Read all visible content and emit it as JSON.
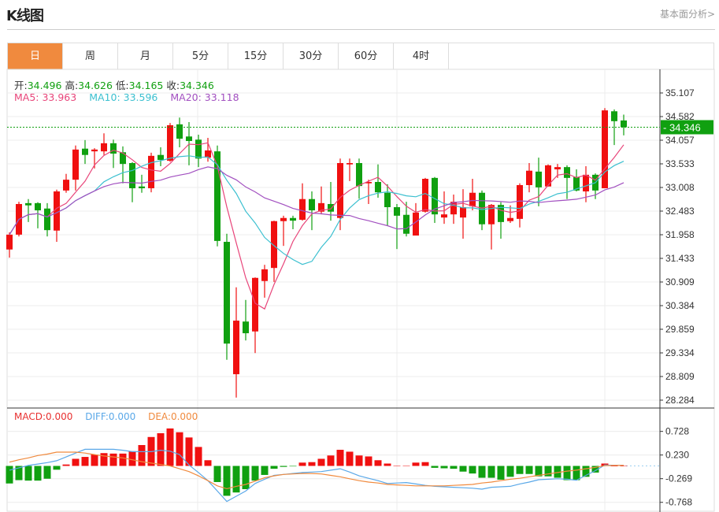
{
  "header": {
    "title": "K线图",
    "link": "基本面分析>"
  },
  "tabs": [
    {
      "label": "日",
      "active": true
    },
    {
      "label": "周"
    },
    {
      "label": "月"
    },
    {
      "label": "5分"
    },
    {
      "label": "15分"
    },
    {
      "label": "30分"
    },
    {
      "label": "60分"
    },
    {
      "label": "4时"
    }
  ],
  "info": {
    "open_label": "开:",
    "open": "34.496",
    "high_label": "高:",
    "high": "34.626",
    "low_label": "低:",
    "low": "34.165",
    "close_label": "收:",
    "close": "34.346",
    "ma5": "MA5: 33.963",
    "ma10": "MA10: 33.596",
    "ma20": "MA20: 33.118"
  },
  "macd_info": {
    "macd": "MACD:0.000",
    "diff": "DIFF:0.000",
    "dea": "DEA:0.000"
  },
  "colors": {
    "up": "#f01010",
    "down": "#10a010",
    "ma5": "#e8457a",
    "ma10": "#3cc0d0",
    "ma20": "#a250c0",
    "diff": "#5aa8e8",
    "dea": "#f08a3e",
    "accent": "#f08a3e"
  },
  "chart_data": [
    {
      "type": "candlestick",
      "name": "K线",
      "current_price": "34.346",
      "y_ticks": [
        "35.107",
        "34.582",
        "34.057",
        "33.533",
        "33.008",
        "32.483",
        "31.958",
        "31.433",
        "30.909",
        "30.384",
        "29.859",
        "29.334",
        "28.809",
        "28.284"
      ],
      "ylim": [
        28.284,
        35.107
      ],
      "grid": true,
      "ohlc": [
        [
          31.63,
          32.01,
          31.45,
          31.96
        ],
        [
          31.96,
          32.69,
          31.92,
          32.64
        ],
        [
          32.66,
          32.75,
          32.24,
          32.61
        ],
        [
          32.66,
          32.68,
          32.1,
          32.5
        ],
        [
          32.54,
          32.66,
          31.92,
          32.06
        ],
        [
          32.05,
          32.96,
          31.8,
          32.92
        ],
        [
          32.94,
          33.31,
          32.89,
          33.18
        ],
        [
          33.18,
          33.94,
          32.94,
          33.85
        ],
        [
          33.87,
          34.06,
          33.53,
          33.73
        ],
        [
          33.81,
          33.88,
          33.43,
          33.85
        ],
        [
          33.81,
          34.21,
          33.73,
          33.99
        ],
        [
          33.99,
          34.07,
          33.44,
          33.76
        ],
        [
          33.79,
          33.92,
          33.1,
          33.53
        ],
        [
          33.55,
          33.57,
          32.68,
          32.99
        ],
        [
          33.03,
          33.29,
          32.89,
          32.99
        ],
        [
          32.99,
          33.78,
          32.9,
          33.71
        ],
        [
          33.73,
          33.9,
          33.48,
          33.62
        ],
        [
          33.6,
          34.44,
          33.58,
          34.39
        ],
        [
          34.41,
          34.56,
          33.9,
          34.09
        ],
        [
          34.14,
          34.46,
          33.5,
          34.04
        ],
        [
          34.07,
          34.18,
          33.46,
          33.65
        ],
        [
          33.67,
          34.11,
          33.58,
          33.83
        ],
        [
          33.81,
          33.94,
          31.7,
          31.82
        ],
        [
          31.8,
          31.98,
          29.18,
          29.54
        ],
        [
          28.86,
          30.79,
          28.34,
          30.05
        ],
        [
          30.03,
          30.51,
          29.61,
          29.77
        ],
        [
          29.81,
          31.01,
          29.33,
          31.0
        ],
        [
          30.93,
          31.29,
          30.56,
          31.19
        ],
        [
          31.22,
          32.27,
          30.91,
          32.26
        ],
        [
          32.26,
          32.38,
          31.71,
          32.33
        ],
        [
          32.33,
          32.38,
          32.08,
          32.27
        ],
        [
          32.29,
          33.1,
          32.27,
          32.75
        ],
        [
          32.75,
          32.92,
          32.06,
          32.5
        ],
        [
          32.47,
          33.03,
          32.41,
          32.66
        ],
        [
          32.64,
          33.13,
          32.27,
          32.47
        ],
        [
          32.33,
          33.65,
          32.06,
          33.55
        ],
        [
          33.52,
          33.65,
          33.15,
          33.55
        ],
        [
          33.55,
          33.65,
          32.76,
          33.04
        ],
        [
          33.1,
          33.18,
          32.64,
          33.13
        ],
        [
          33.13,
          33.52,
          32.78,
          32.9
        ],
        [
          32.89,
          33.08,
          32.15,
          32.57
        ],
        [
          32.57,
          32.64,
          31.64,
          32.38
        ],
        [
          32.4,
          32.69,
          31.92,
          31.98
        ],
        [
          31.94,
          32.66,
          31.94,
          32.45
        ],
        [
          32.47,
          33.22,
          32.45,
          33.2
        ],
        [
          33.22,
          33.24,
          32.22,
          32.41
        ],
        [
          32.34,
          32.92,
          32.2,
          32.41
        ],
        [
          32.41,
          32.85,
          32.2,
          32.69
        ],
        [
          32.34,
          32.97,
          31.87,
          32.57
        ],
        [
          32.59,
          33.2,
          32.5,
          32.89
        ],
        [
          32.89,
          32.94,
          32.06,
          32.19
        ],
        [
          32.19,
          32.64,
          31.63,
          32.62
        ],
        [
          32.62,
          32.68,
          31.87,
          32.24
        ],
        [
          32.26,
          32.61,
          32.22,
          32.33
        ],
        [
          32.31,
          33.1,
          32.12,
          33.06
        ],
        [
          33.06,
          33.55,
          32.9,
          33.38
        ],
        [
          33.36,
          33.67,
          32.59,
          33.01
        ],
        [
          33.03,
          33.52,
          33.03,
          33.5
        ],
        [
          33.41,
          33.53,
          33.22,
          33.46
        ],
        [
          33.46,
          33.5,
          32.75,
          33.22
        ],
        [
          33.24,
          33.41,
          32.92,
          32.94
        ],
        [
          32.92,
          33.48,
          32.68,
          33.29
        ],
        [
          33.29,
          33.32,
          32.75,
          32.94
        ],
        [
          32.99,
          34.77,
          32.99,
          34.72
        ],
        [
          34.7,
          34.74,
          33.95,
          34.48
        ],
        [
          34.496,
          34.626,
          34.165,
          34.346
        ]
      ],
      "moving_averages": [
        5,
        10,
        20
      ]
    },
    {
      "type": "bar+line",
      "name": "MACD",
      "y_ticks": [
        "0.728",
        "0.230",
        "-0.269",
        "-0.768"
      ],
      "ylim": [
        -0.85,
        0.85
      ],
      "macd": [
        -0.37,
        -0.3,
        -0.31,
        -0.31,
        -0.27,
        -0.08,
        0.03,
        0.15,
        0.19,
        0.24,
        0.27,
        0.26,
        0.26,
        0.31,
        0.44,
        0.61,
        0.69,
        0.79,
        0.71,
        0.6,
        0.4,
        0.12,
        -0.34,
        -0.63,
        -0.56,
        -0.49,
        -0.31,
        -0.19,
        -0.06,
        -0.02,
        -0.01,
        0.07,
        0.08,
        0.15,
        0.22,
        0.34,
        0.3,
        0.22,
        0.2,
        0.12,
        0.05,
        0.005,
        0,
        0.07,
        0.08,
        -0.04,
        -0.05,
        -0.06,
        -0.12,
        -0.16,
        -0.25,
        -0.25,
        -0.29,
        -0.23,
        -0.17,
        -0.17,
        -0.22,
        -0.22,
        -0.25,
        -0.3,
        -0.3,
        -0.23,
        -0.14,
        0.05,
        0,
        0
      ],
      "diff": [
        -0.09,
        -0.04,
        0.01,
        0.04,
        0.07,
        0.11,
        0.19,
        0.27,
        0.35,
        0.35,
        0.35,
        0.35,
        0.33,
        0.3,
        0.3,
        0.3,
        0.33,
        0.31,
        0.24,
        0.02,
        -0.14,
        -0.31,
        -0.53,
        -0.75,
        -0.64,
        -0.53,
        -0.37,
        -0.28,
        -0.2,
        -0.18,
        -0.16,
        -0.14,
        -0.13,
        -0.12,
        -0.09,
        -0.06,
        -0.13,
        -0.21,
        -0.26,
        -0.31,
        -0.37,
        -0.36,
        -0.35,
        -0.38,
        -0.41,
        -0.43,
        -0.44,
        -0.45,
        -0.46,
        -0.47,
        -0.49,
        -0.45,
        -0.44,
        -0.43,
        -0.38,
        -0.34,
        -0.29,
        -0.28,
        -0.27,
        -0.28,
        -0.3,
        -0.2,
        -0.1,
        0.02,
        0.01,
        0.01
      ],
      "dea": [
        0.08,
        0.13,
        0.17,
        0.22,
        0.25,
        0.29,
        0.29,
        0.29,
        0.27,
        0.24,
        0.21,
        0.19,
        0.17,
        0.13,
        0.09,
        0.06,
        0.03,
        0.0,
        -0.06,
        -0.12,
        -0.21,
        -0.31,
        -0.42,
        -0.48,
        -0.43,
        -0.39,
        -0.32,
        -0.25,
        -0.21,
        -0.18,
        -0.17,
        -0.16,
        -0.16,
        -0.17,
        -0.2,
        -0.23,
        -0.27,
        -0.31,
        -0.34,
        -0.36,
        -0.39,
        -0.4,
        -0.41,
        -0.42,
        -0.42,
        -0.42,
        -0.42,
        -0.41,
        -0.4,
        -0.39,
        -0.36,
        -0.34,
        -0.31,
        -0.28,
        -0.26,
        -0.23,
        -0.2,
        -0.17,
        -0.14,
        -0.11,
        -0.09,
        -0.06,
        -0.03,
        0.005,
        0.01,
        0.01
      ]
    }
  ]
}
